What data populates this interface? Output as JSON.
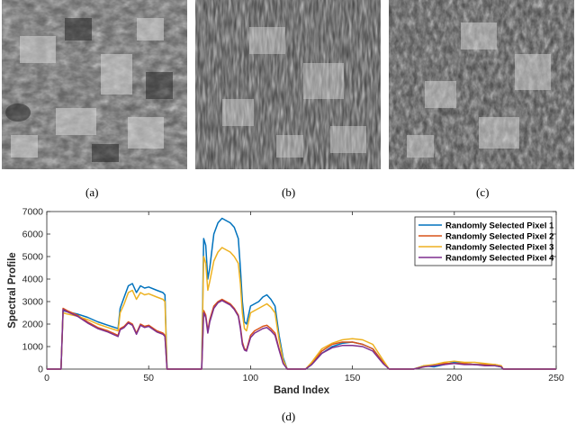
{
  "panels": [
    {
      "label": "(a)",
      "kind": "hyperspectral band image, high detail"
    },
    {
      "label": "(b)",
      "kind": "hyperspectral band image, noisy"
    },
    {
      "label": "(c)",
      "kind": "hyperspectral band image, medium noise"
    }
  ],
  "chart_caption": "(d)",
  "chart_data": {
    "type": "line",
    "xlabel": "Band Index",
    "ylabel": "Spectral Profile",
    "xlim": [
      0,
      250
    ],
    "ylim": [
      0,
      7000
    ],
    "xticks": [
      0,
      50,
      100,
      150,
      200,
      250
    ],
    "yticks": [
      0,
      1000,
      2000,
      3000,
      4000,
      5000,
      6000,
      7000
    ],
    "grid": false,
    "legend_position": "top-right",
    "series": [
      {
        "name": "Randomly Selected Pixel 1",
        "color": "#0072BD",
        "points": [
          [
            0,
            0
          ],
          [
            7,
            0
          ],
          [
            8,
            2600
          ],
          [
            10,
            2550
          ],
          [
            15,
            2450
          ],
          [
            20,
            2300
          ],
          [
            25,
            2100
          ],
          [
            30,
            1950
          ],
          [
            35,
            1800
          ],
          [
            36,
            2700
          ],
          [
            38,
            3200
          ],
          [
            40,
            3700
          ],
          [
            42,
            3800
          ],
          [
            44,
            3400
          ],
          [
            46,
            3700
          ],
          [
            48,
            3600
          ],
          [
            50,
            3650
          ],
          [
            54,
            3500
          ],
          [
            57,
            3400
          ],
          [
            58,
            3300
          ],
          [
            59,
            0
          ],
          [
            76,
            0
          ],
          [
            77,
            5800
          ],
          [
            78,
            5500
          ],
          [
            79,
            4000
          ],
          [
            80,
            4500
          ],
          [
            82,
            6000
          ],
          [
            84,
            6500
          ],
          [
            86,
            6700
          ],
          [
            88,
            6600
          ],
          [
            90,
            6500
          ],
          [
            92,
            6300
          ],
          [
            94,
            5800
          ],
          [
            95,
            4500
          ],
          [
            96,
            3000
          ],
          [
            97,
            2100
          ],
          [
            98,
            2000
          ],
          [
            100,
            2800
          ],
          [
            102,
            2900
          ],
          [
            104,
            3000
          ],
          [
            106,
            3200
          ],
          [
            108,
            3300
          ],
          [
            110,
            3100
          ],
          [
            112,
            2800
          ],
          [
            114,
            1500
          ],
          [
            116,
            500
          ],
          [
            118,
            0
          ],
          [
            127,
            0
          ],
          [
            130,
            200
          ],
          [
            135,
            700
          ],
          [
            140,
            1000
          ],
          [
            145,
            1150
          ],
          [
            150,
            1200
          ],
          [
            155,
            1100
          ],
          [
            160,
            900
          ],
          [
            165,
            300
          ],
          [
            168,
            0
          ],
          [
            180,
            0
          ],
          [
            185,
            150
          ],
          [
            190,
            100
          ],
          [
            195,
            200
          ],
          [
            200,
            300
          ],
          [
            205,
            250
          ],
          [
            210,
            200
          ],
          [
            215,
            200
          ],
          [
            220,
            150
          ],
          [
            223,
            100
          ],
          [
            224,
            0
          ],
          [
            250,
            0
          ]
        ]
      },
      {
        "name": "Randomly Selected Pixel 2",
        "color": "#D95319",
        "points": [
          [
            0,
            0
          ],
          [
            7,
            0
          ],
          [
            8,
            2700
          ],
          [
            10,
            2600
          ],
          [
            15,
            2400
          ],
          [
            20,
            2100
          ],
          [
            25,
            1850
          ],
          [
            30,
            1700
          ],
          [
            35,
            1500
          ],
          [
            36,
            1800
          ],
          [
            38,
            1900
          ],
          [
            40,
            2100
          ],
          [
            42,
            2000
          ],
          [
            44,
            1600
          ],
          [
            46,
            2000
          ],
          [
            48,
            1900
          ],
          [
            50,
            1950
          ],
          [
            54,
            1700
          ],
          [
            57,
            1600
          ],
          [
            58,
            1500
          ],
          [
            59,
            0
          ],
          [
            76,
            0
          ],
          [
            77,
            2600
          ],
          [
            78,
            2400
          ],
          [
            79,
            1700
          ],
          [
            80,
            2200
          ],
          [
            82,
            2800
          ],
          [
            84,
            3000
          ],
          [
            86,
            3100
          ],
          [
            88,
            3000
          ],
          [
            90,
            2900
          ],
          [
            92,
            2700
          ],
          [
            94,
            2400
          ],
          [
            95,
            1900
          ],
          [
            96,
            1200
          ],
          [
            97,
            900
          ],
          [
            98,
            850
          ],
          [
            100,
            1500
          ],
          [
            102,
            1700
          ],
          [
            104,
            1800
          ],
          [
            106,
            1900
          ],
          [
            108,
            1950
          ],
          [
            110,
            1800
          ],
          [
            112,
            1600
          ],
          [
            114,
            900
          ],
          [
            116,
            300
          ],
          [
            118,
            0
          ],
          [
            127,
            0
          ],
          [
            130,
            250
          ],
          [
            135,
            800
          ],
          [
            140,
            1100
          ],
          [
            145,
            1200
          ],
          [
            150,
            1200
          ],
          [
            155,
            1100
          ],
          [
            160,
            900
          ],
          [
            165,
            300
          ],
          [
            168,
            0
          ],
          [
            180,
            0
          ],
          [
            185,
            100
          ],
          [
            190,
            200
          ],
          [
            195,
            250
          ],
          [
            200,
            250
          ],
          [
            205,
            250
          ],
          [
            210,
            200
          ],
          [
            215,
            200
          ],
          [
            220,
            200
          ],
          [
            223,
            150
          ],
          [
            224,
            0
          ],
          [
            250,
            0
          ]
        ]
      },
      {
        "name": "Randomly Selected Pixel 3",
        "color": "#EDB120",
        "points": [
          [
            0,
            0
          ],
          [
            7,
            0
          ],
          [
            8,
            2500
          ],
          [
            10,
            2450
          ],
          [
            15,
            2350
          ],
          [
            20,
            2200
          ],
          [
            25,
            2000
          ],
          [
            30,
            1850
          ],
          [
            35,
            1700
          ],
          [
            36,
            2500
          ],
          [
            38,
            2900
          ],
          [
            40,
            3400
          ],
          [
            42,
            3500
          ],
          [
            44,
            3100
          ],
          [
            46,
            3400
          ],
          [
            48,
            3300
          ],
          [
            50,
            3350
          ],
          [
            54,
            3200
          ],
          [
            57,
            3100
          ],
          [
            58,
            3000
          ],
          [
            59,
            0
          ],
          [
            76,
            0
          ],
          [
            77,
            5000
          ],
          [
            78,
            4700
          ],
          [
            79,
            3500
          ],
          [
            80,
            3900
          ],
          [
            82,
            4800
          ],
          [
            84,
            5200
          ],
          [
            86,
            5400
          ],
          [
            88,
            5300
          ],
          [
            90,
            5200
          ],
          [
            92,
            5000
          ],
          [
            94,
            4700
          ],
          [
            95,
            3800
          ],
          [
            96,
            2500
          ],
          [
            97,
            1800
          ],
          [
            98,
            1700
          ],
          [
            100,
            2500
          ],
          [
            102,
            2600
          ],
          [
            104,
            2700
          ],
          [
            106,
            2800
          ],
          [
            108,
            2900
          ],
          [
            110,
            2750
          ],
          [
            112,
            2500
          ],
          [
            114,
            1300
          ],
          [
            116,
            400
          ],
          [
            118,
            0
          ],
          [
            127,
            0
          ],
          [
            130,
            300
          ],
          [
            135,
            900
          ],
          [
            140,
            1150
          ],
          [
            145,
            1300
          ],
          [
            150,
            1350
          ],
          [
            155,
            1300
          ],
          [
            160,
            1100
          ],
          [
            165,
            400
          ],
          [
            168,
            0
          ],
          [
            180,
            0
          ],
          [
            185,
            150
          ],
          [
            190,
            200
          ],
          [
            195,
            300
          ],
          [
            200,
            350
          ],
          [
            205,
            300
          ],
          [
            210,
            300
          ],
          [
            215,
            250
          ],
          [
            220,
            200
          ],
          [
            223,
            150
          ],
          [
            224,
            0
          ],
          [
            250,
            0
          ]
        ]
      },
      {
        "name": "Randomly Selected Pixel 4",
        "color": "#7E2F8E",
        "points": [
          [
            0,
            0
          ],
          [
            7,
            0
          ],
          [
            8,
            2650
          ],
          [
            10,
            2550
          ],
          [
            15,
            2350
          ],
          [
            20,
            2050
          ],
          [
            25,
            1800
          ],
          [
            30,
            1650
          ],
          [
            35,
            1450
          ],
          [
            36,
            1750
          ],
          [
            38,
            1850
          ],
          [
            40,
            2050
          ],
          [
            42,
            1950
          ],
          [
            44,
            1550
          ],
          [
            46,
            1950
          ],
          [
            48,
            1850
          ],
          [
            50,
            1900
          ],
          [
            54,
            1650
          ],
          [
            57,
            1550
          ],
          [
            58,
            1450
          ],
          [
            59,
            0
          ],
          [
            76,
            0
          ],
          [
            77,
            2500
          ],
          [
            78,
            2300
          ],
          [
            79,
            1600
          ],
          [
            80,
            2100
          ],
          [
            82,
            2700
          ],
          [
            84,
            2950
          ],
          [
            86,
            3050
          ],
          [
            88,
            2950
          ],
          [
            90,
            2850
          ],
          [
            92,
            2650
          ],
          [
            94,
            2350
          ],
          [
            95,
            1800
          ],
          [
            96,
            1100
          ],
          [
            97,
            850
          ],
          [
            98,
            800
          ],
          [
            100,
            1400
          ],
          [
            102,
            1600
          ],
          [
            104,
            1700
          ],
          [
            106,
            1800
          ],
          [
            108,
            1850
          ],
          [
            110,
            1700
          ],
          [
            112,
            1500
          ],
          [
            114,
            850
          ],
          [
            116,
            250
          ],
          [
            118,
            0
          ],
          [
            127,
            0
          ],
          [
            130,
            200
          ],
          [
            135,
            700
          ],
          [
            140,
            950
          ],
          [
            145,
            1050
          ],
          [
            150,
            1050
          ],
          [
            155,
            1000
          ],
          [
            160,
            800
          ],
          [
            165,
            250
          ],
          [
            168,
            0
          ],
          [
            180,
            0
          ],
          [
            185,
            100
          ],
          [
            190,
            150
          ],
          [
            195,
            200
          ],
          [
            200,
            250
          ],
          [
            205,
            200
          ],
          [
            210,
            200
          ],
          [
            215,
            150
          ],
          [
            220,
            150
          ],
          [
            223,
            100
          ],
          [
            224,
            0
          ],
          [
            250,
            0
          ]
        ]
      }
    ]
  }
}
